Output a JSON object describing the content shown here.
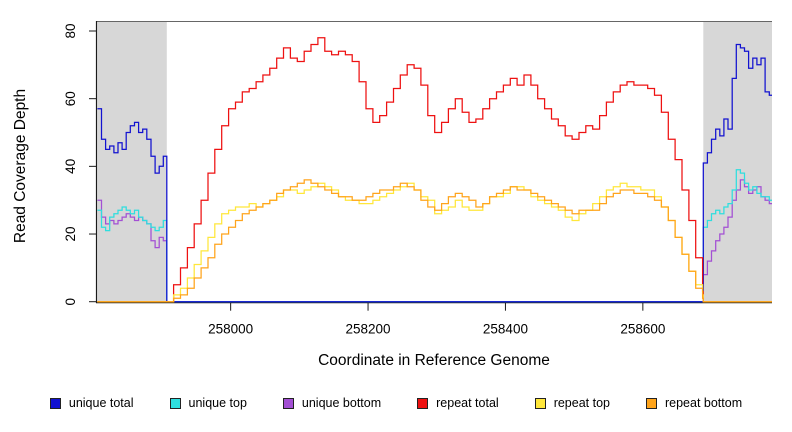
{
  "chart_data": {
    "type": "line",
    "style": "step",
    "title": "",
    "xlabel": "Coordinate in Reference Genome",
    "ylabel": "Read Coverage Depth",
    "xlim": [
      257804,
      258788
    ],
    "ylim": [
      0,
      80
    ],
    "x_ticks": [
      258000,
      258200,
      258400,
      258600
    ],
    "y_ticks": [
      0,
      20,
      40,
      60,
      80
    ],
    "grid": false,
    "shade_color": "#d7d7d7",
    "shaded_regions": [
      {
        "start": 257806,
        "end": 257907
      },
      {
        "start": 258688,
        "end": 258788
      }
    ],
    "series": [
      {
        "id": "unique-bottom",
        "name": "unique bottom",
        "color": "#a34fd4",
        "segments": [
          {
            "start": 257806,
            "step": 6,
            "end": 257907,
            "values": [
              30,
              25,
              23,
              24,
              23,
              24,
              25,
              26,
              25,
              24,
              25,
              24,
              23,
              18,
              16,
              19,
              18
            ]
          },
          {
            "start": 257907,
            "step": 781,
            "end": 258688,
            "values": [
              0,
              0
            ]
          },
          {
            "start": 258688,
            "step": 6,
            "end": 258788,
            "values": [
              8,
              12,
              15,
              18,
              20,
              22,
              25,
              30,
              33,
              36,
              34,
              32,
              33,
              34,
              31,
              30,
              29
            ]
          }
        ]
      },
      {
        "id": "unique-top",
        "name": "unique top",
        "color": "#2edede",
        "segments": [
          {
            "start": 257806,
            "step": 6,
            "end": 257907,
            "values": [
              27,
              22,
              21,
              25,
              26,
              27,
              28,
              27,
              26,
              27,
              25,
              24,
              23,
              22,
              21,
              22,
              24
            ]
          },
          {
            "start": 257907,
            "step": 781,
            "end": 258688,
            "values": [
              0,
              0
            ]
          },
          {
            "start": 258688,
            "step": 6,
            "end": 258788,
            "values": [
              22,
              24,
              26,
              27,
              26,
              28,
              29,
              33,
              39,
              38,
              35,
              33,
              34,
              32,
              31,
              31,
              30
            ]
          }
        ]
      },
      {
        "id": "unique-total",
        "name": "unique total",
        "color": "#1212d0",
        "segments": [
          {
            "start": 257806,
            "step": 6,
            "end": 257907,
            "values": [
              57,
              48,
              45,
              46,
              44,
              47,
              45,
              50,
              52,
              53,
              50,
              51,
              48,
              43,
              38,
              40,
              43
            ]
          },
          {
            "start": 257907,
            "step": 781,
            "end": 258688,
            "values": [
              0,
              0
            ]
          },
          {
            "start": 258688,
            "step": 6,
            "end": 258788,
            "values": [
              41,
              44,
              48,
              51,
              49,
              54,
              51,
              66,
              76,
              75,
              74,
              69,
              72,
              70,
              72,
              62,
              61
            ]
          }
        ]
      },
      {
        "id": "repeat-total",
        "name": "repeat total",
        "color": "#ee1111",
        "segments": [
          {
            "start": 257806,
            "step": 101,
            "end": 257907,
            "values": [
              0,
              0
            ]
          },
          {
            "start": 257907,
            "step": 10,
            "end": 258688,
            "values": [
              0,
              5,
              10,
              16,
              23,
              30,
              38,
              45,
              52,
              57,
              59,
              62,
              63,
              65,
              67,
              69,
              72,
              75,
              72,
              71,
              74,
              76,
              78,
              74,
              73,
              74,
              73,
              71,
              65,
              57,
              53,
              55,
              59,
              63,
              67,
              70,
              69,
              64,
              55,
              50,
              53,
              57,
              60,
              56,
              53,
              54,
              57,
              60,
              62,
              64,
              66,
              64,
              67,
              64,
              60,
              57,
              54,
              52,
              49,
              48,
              50,
              52,
              51,
              55,
              59,
              62,
              64,
              65,
              64,
              64,
              63,
              61,
              56,
              48,
              42,
              33,
              24,
              13,
              3
            ]
          },
          {
            "start": 258688,
            "step": 100,
            "end": 258788,
            "values": [
              0,
              0
            ]
          }
        ]
      },
      {
        "id": "repeat-top",
        "name": "repeat top",
        "color": "#ffe73b",
        "segments": [
          {
            "start": 257806,
            "step": 101,
            "end": 257907,
            "values": [
              0,
              0
            ]
          },
          {
            "start": 257907,
            "step": 10,
            "end": 258688,
            "values": [
              0,
              2,
              4,
              7,
              11,
              15,
              19,
              23,
              26,
              27,
              28,
              28,
              29,
              28,
              29,
              30,
              31,
              33,
              33,
              32,
              33,
              34,
              35,
              34,
              33,
              31,
              30,
              30,
              29,
              29,
              30,
              31,
              32,
              33,
              34,
              35,
              33,
              31,
              30,
              26,
              27,
              28,
              30,
              28,
              27,
              27,
              29,
              31,
              31,
              32,
              34,
              34,
              33,
              31,
              30,
              29,
              28,
              27,
              25,
              24,
              26,
              27,
              29,
              31,
              33,
              34,
              35,
              34,
              34,
              33,
              33,
              31,
              28,
              24,
              19,
              14,
              9,
              5,
              2
            ]
          },
          {
            "start": 258688,
            "step": 100,
            "end": 258788,
            "values": [
              0,
              0
            ]
          }
        ]
      },
      {
        "id": "repeat-bottom",
        "name": "repeat bottom",
        "color": "#ffa41b",
        "segments": [
          {
            "start": 257806,
            "step": 101,
            "end": 257907,
            "values": [
              0,
              0
            ]
          },
          {
            "start": 257907,
            "step": 10,
            "end": 258688,
            "values": [
              0,
              1,
              2,
              4,
              7,
              10,
              13,
              17,
              20,
              22,
              24,
              26,
              27,
              28,
              29,
              30,
              32,
              33,
              34,
              35,
              36,
              35,
              34,
              33,
              32,
              31,
              31,
              30,
              30,
              31,
              32,
              33,
              33,
              34,
              35,
              34,
              33,
              30,
              28,
              27,
              29,
              31,
              32,
              31,
              30,
              28,
              29,
              31,
              32,
              33,
              34,
              33,
              33,
              32,
              31,
              30,
              29,
              28,
              27,
              26,
              27,
              27,
              27,
              29,
              31,
              32,
              33,
              33,
              32,
              32,
              31,
              30,
              28,
              24,
              19,
              14,
              9,
              4,
              1
            ]
          },
          {
            "start": 258688,
            "step": 100,
            "end": 258788,
            "values": [
              0,
              0
            ]
          }
        ]
      }
    ]
  },
  "legend": {
    "items": [
      {
        "id": "unique-total",
        "label": "unique total",
        "color": "#1212d0"
      },
      {
        "id": "unique-top",
        "label": "unique top",
        "color": "#2edede"
      },
      {
        "id": "unique-bottom",
        "label": "unique bottom",
        "color": "#a34fd4"
      },
      {
        "id": "repeat-total",
        "label": "repeat total",
        "color": "#ee1111"
      },
      {
        "id": "repeat-top",
        "label": "repeat top",
        "color": "#ffe73b"
      },
      {
        "id": "repeat-bottom",
        "label": "repeat bottom",
        "color": "#ffa41b"
      }
    ]
  }
}
